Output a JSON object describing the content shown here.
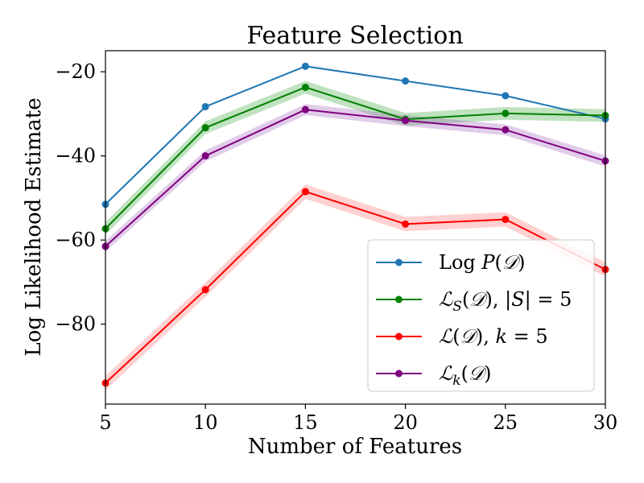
{
  "chart_data": {
    "type": "line",
    "title": "Feature Selection",
    "xlabel": "Number of Features",
    "ylabel": "Log Likelihood Estimate",
    "x": [
      5,
      10,
      15,
      20,
      25,
      30
    ],
    "xlim": [
      5,
      30
    ],
    "ylim": [
      -99,
      -15
    ],
    "xticks": [
      5,
      10,
      15,
      20,
      25,
      30
    ],
    "yticks": [
      -20,
      -40,
      -60,
      -80
    ],
    "ytick_labels": [
      "−20",
      "−40",
      "−60",
      "−80"
    ],
    "legend_position": "lower-right",
    "grid": false,
    "series": [
      {
        "key": "logp",
        "legend_parts": [
          {
            "t": "Log ",
            "s": ""
          },
          {
            "t": "P",
            "s": "it"
          },
          {
            "t": "(",
            "s": ""
          },
          {
            "t": "𝒟",
            "s": "cal"
          },
          {
            "t": ")",
            "s": ""
          }
        ],
        "color": "#1f77b4",
        "values": [
          -51.5,
          -28.3,
          -18.7,
          -22.2,
          -25.7,
          -31.2
        ],
        "band": 0
      },
      {
        "key": "ls",
        "legend_parts": [
          {
            "t": "ℒ",
            "s": "cal"
          },
          {
            "t": "S",
            "s": "sub"
          },
          {
            "t": "(",
            "s": ""
          },
          {
            "t": "𝒟",
            "s": "cal"
          },
          {
            "t": "), |",
            "s": ""
          },
          {
            "t": "S",
            "s": "it"
          },
          {
            "t": "| = 5",
            "s": ""
          }
        ],
        "color": "#008000",
        "band_color": "#2ca02c",
        "values": [
          -57.3,
          -33.3,
          -23.7,
          -31.3,
          -29.9,
          -30.4
        ],
        "band": 1.5
      },
      {
        "key": "l",
        "legend_parts": [
          {
            "t": "ℒ",
            "s": "cal"
          },
          {
            "t": "(",
            "s": ""
          },
          {
            "t": "𝒟",
            "s": "cal"
          },
          {
            "t": "), ",
            "s": ""
          },
          {
            "t": "k",
            "s": "it"
          },
          {
            "t": " = 5",
            "s": ""
          }
        ],
        "color": "#ff0000",
        "band_color": "#ff6666",
        "values": [
          -94.0,
          -71.8,
          -48.5,
          -56.2,
          -55.1,
          -67.0
        ],
        "band": 1.7
      },
      {
        "key": "lk",
        "legend_parts": [
          {
            "t": "ℒ",
            "s": "cal"
          },
          {
            "t": "k",
            "s": "sub"
          },
          {
            "t": "(",
            "s": ""
          },
          {
            "t": "𝒟",
            "s": "cal"
          },
          {
            "t": ")",
            "s": ""
          }
        ],
        "color": "#800080",
        "band_color": "#9b59b6",
        "values": [
          -61.5,
          -40.0,
          -29.0,
          -31.6,
          -33.8,
          -41.2
        ],
        "band": 1.3
      }
    ]
  }
}
